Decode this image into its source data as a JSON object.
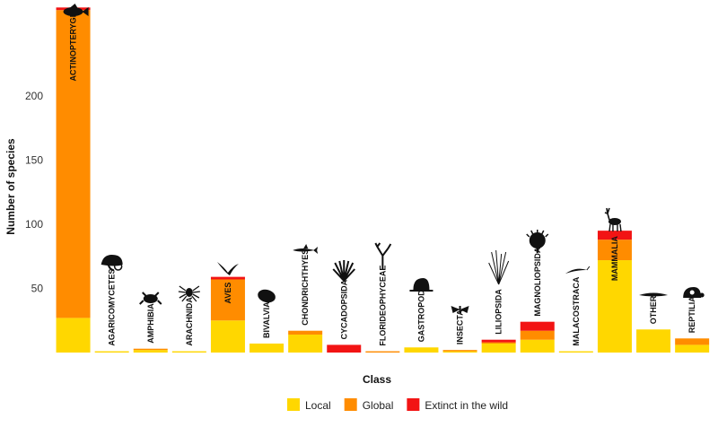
{
  "chart_data": {
    "type": "bar",
    "stacked": true,
    "xlabel": "Class",
    "ylabel": "Number of species",
    "ylim": [
      0,
      260
    ],
    "yticks": [
      50,
      100,
      150,
      200
    ],
    "grid": false,
    "legend_position": "bottom",
    "categories": [
      "ACTINOPTERYGII",
      "AGARICOMYCETES",
      "AMPHIBIA",
      "ARACHNIDA",
      "AVES",
      "BIVALVIA",
      "CHONDRICHTHYES",
      "CYCADOPSIDA",
      "FLORIDEOPHYCEAE",
      "GASTROPODA",
      "INSECTA",
      "LILIOPSIDA",
      "MAGNOLIOPSIDA",
      "MALACOSTRACA",
      "MAMMALIA",
      "OTHER",
      "REPTILIA"
    ],
    "icons": [
      "fish-icon",
      "mushroom-icon",
      "frog-icon",
      "spider-icon",
      "bird-icon",
      "mussel-icon",
      "shark-icon",
      "cycad-icon",
      "seaweed-icon",
      "snail-icon",
      "moth-icon",
      "grass-icon",
      "shrub-icon",
      "shrimp-icon",
      "antelope-icon",
      "eel-icon",
      "tortoise-icon"
    ],
    "series": [
      {
        "name": "Local",
        "color": "#FFD700",
        "values": [
          27,
          1,
          2,
          1,
          25,
          7,
          14,
          0,
          0,
          4,
          1,
          7,
          10,
          1,
          72,
          18,
          6
        ]
      },
      {
        "name": "Global",
        "color": "#FF8C00",
        "values": [
          240,
          0,
          1,
          0,
          32,
          0,
          3,
          0,
          1,
          0,
          1,
          1,
          7,
          0,
          16,
          0,
          5
        ]
      },
      {
        "name": "Extinct in the wild",
        "color": "#F21414",
        "values": [
          2,
          0,
          0,
          0,
          2,
          0,
          0,
          6,
          0,
          0,
          0,
          2,
          7,
          0,
          7,
          0,
          0
        ]
      }
    ]
  }
}
